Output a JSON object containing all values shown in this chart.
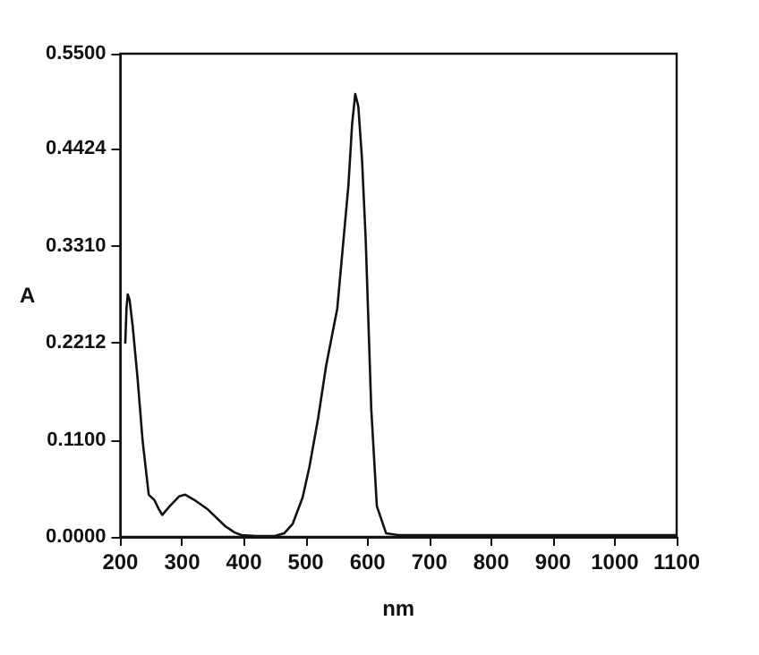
{
  "chart_data": {
    "type": "line",
    "xlabel": "nm",
    "ylabel": "A",
    "xlim": [
      200,
      1100
    ],
    "ylim": [
      0,
      0.55
    ],
    "xticks": [
      200,
      300,
      400,
      500,
      600,
      700,
      800,
      900,
      1000,
      1100
    ],
    "yticks": [
      {
        "value": 0,
        "label": "0.0000"
      },
      {
        "value": 0.11,
        "label": "0.1100"
      },
      {
        "value": 0.2212,
        "label": "0.2212"
      },
      {
        "value": 0.331,
        "label": "0.3310"
      },
      {
        "value": 0.4424,
        "label": "0.4424"
      },
      {
        "value": 0.55,
        "label": "0.5500"
      }
    ],
    "grid": false,
    "marker": "none",
    "line_style": "solid",
    "x": [
      208,
      210,
      212,
      215,
      220,
      228,
      236,
      246,
      255,
      262,
      268,
      280,
      295,
      305,
      320,
      342,
      370,
      385,
      396,
      420,
      450,
      465,
      479,
      495,
      506,
      520,
      533,
      551,
      569,
      575,
      580,
      585,
      591,
      597,
      606,
      615,
      630,
      650,
      700,
      800,
      900,
      1000,
      1100
    ],
    "series": [
      {
        "color": "#111111",
        "values": [
          0.22,
          0.26,
          0.276,
          0.27,
          0.24,
          0.18,
          0.11,
          0.048,
          0.042,
          0.032,
          0.025,
          0.035,
          0.046,
          0.048,
          0.042,
          0.031,
          0.012,
          0.005,
          0.002,
          0.001,
          0.001,
          0.004,
          0.015,
          0.045,
          0.08,
          0.135,
          0.195,
          0.26,
          0.4,
          0.47,
          0.504,
          0.49,
          0.43,
          0.338,
          0.145,
          0.035,
          0.004,
          0.002,
          0.002,
          0.002,
          0.002,
          0.002,
          0.002
        ]
      }
    ]
  }
}
